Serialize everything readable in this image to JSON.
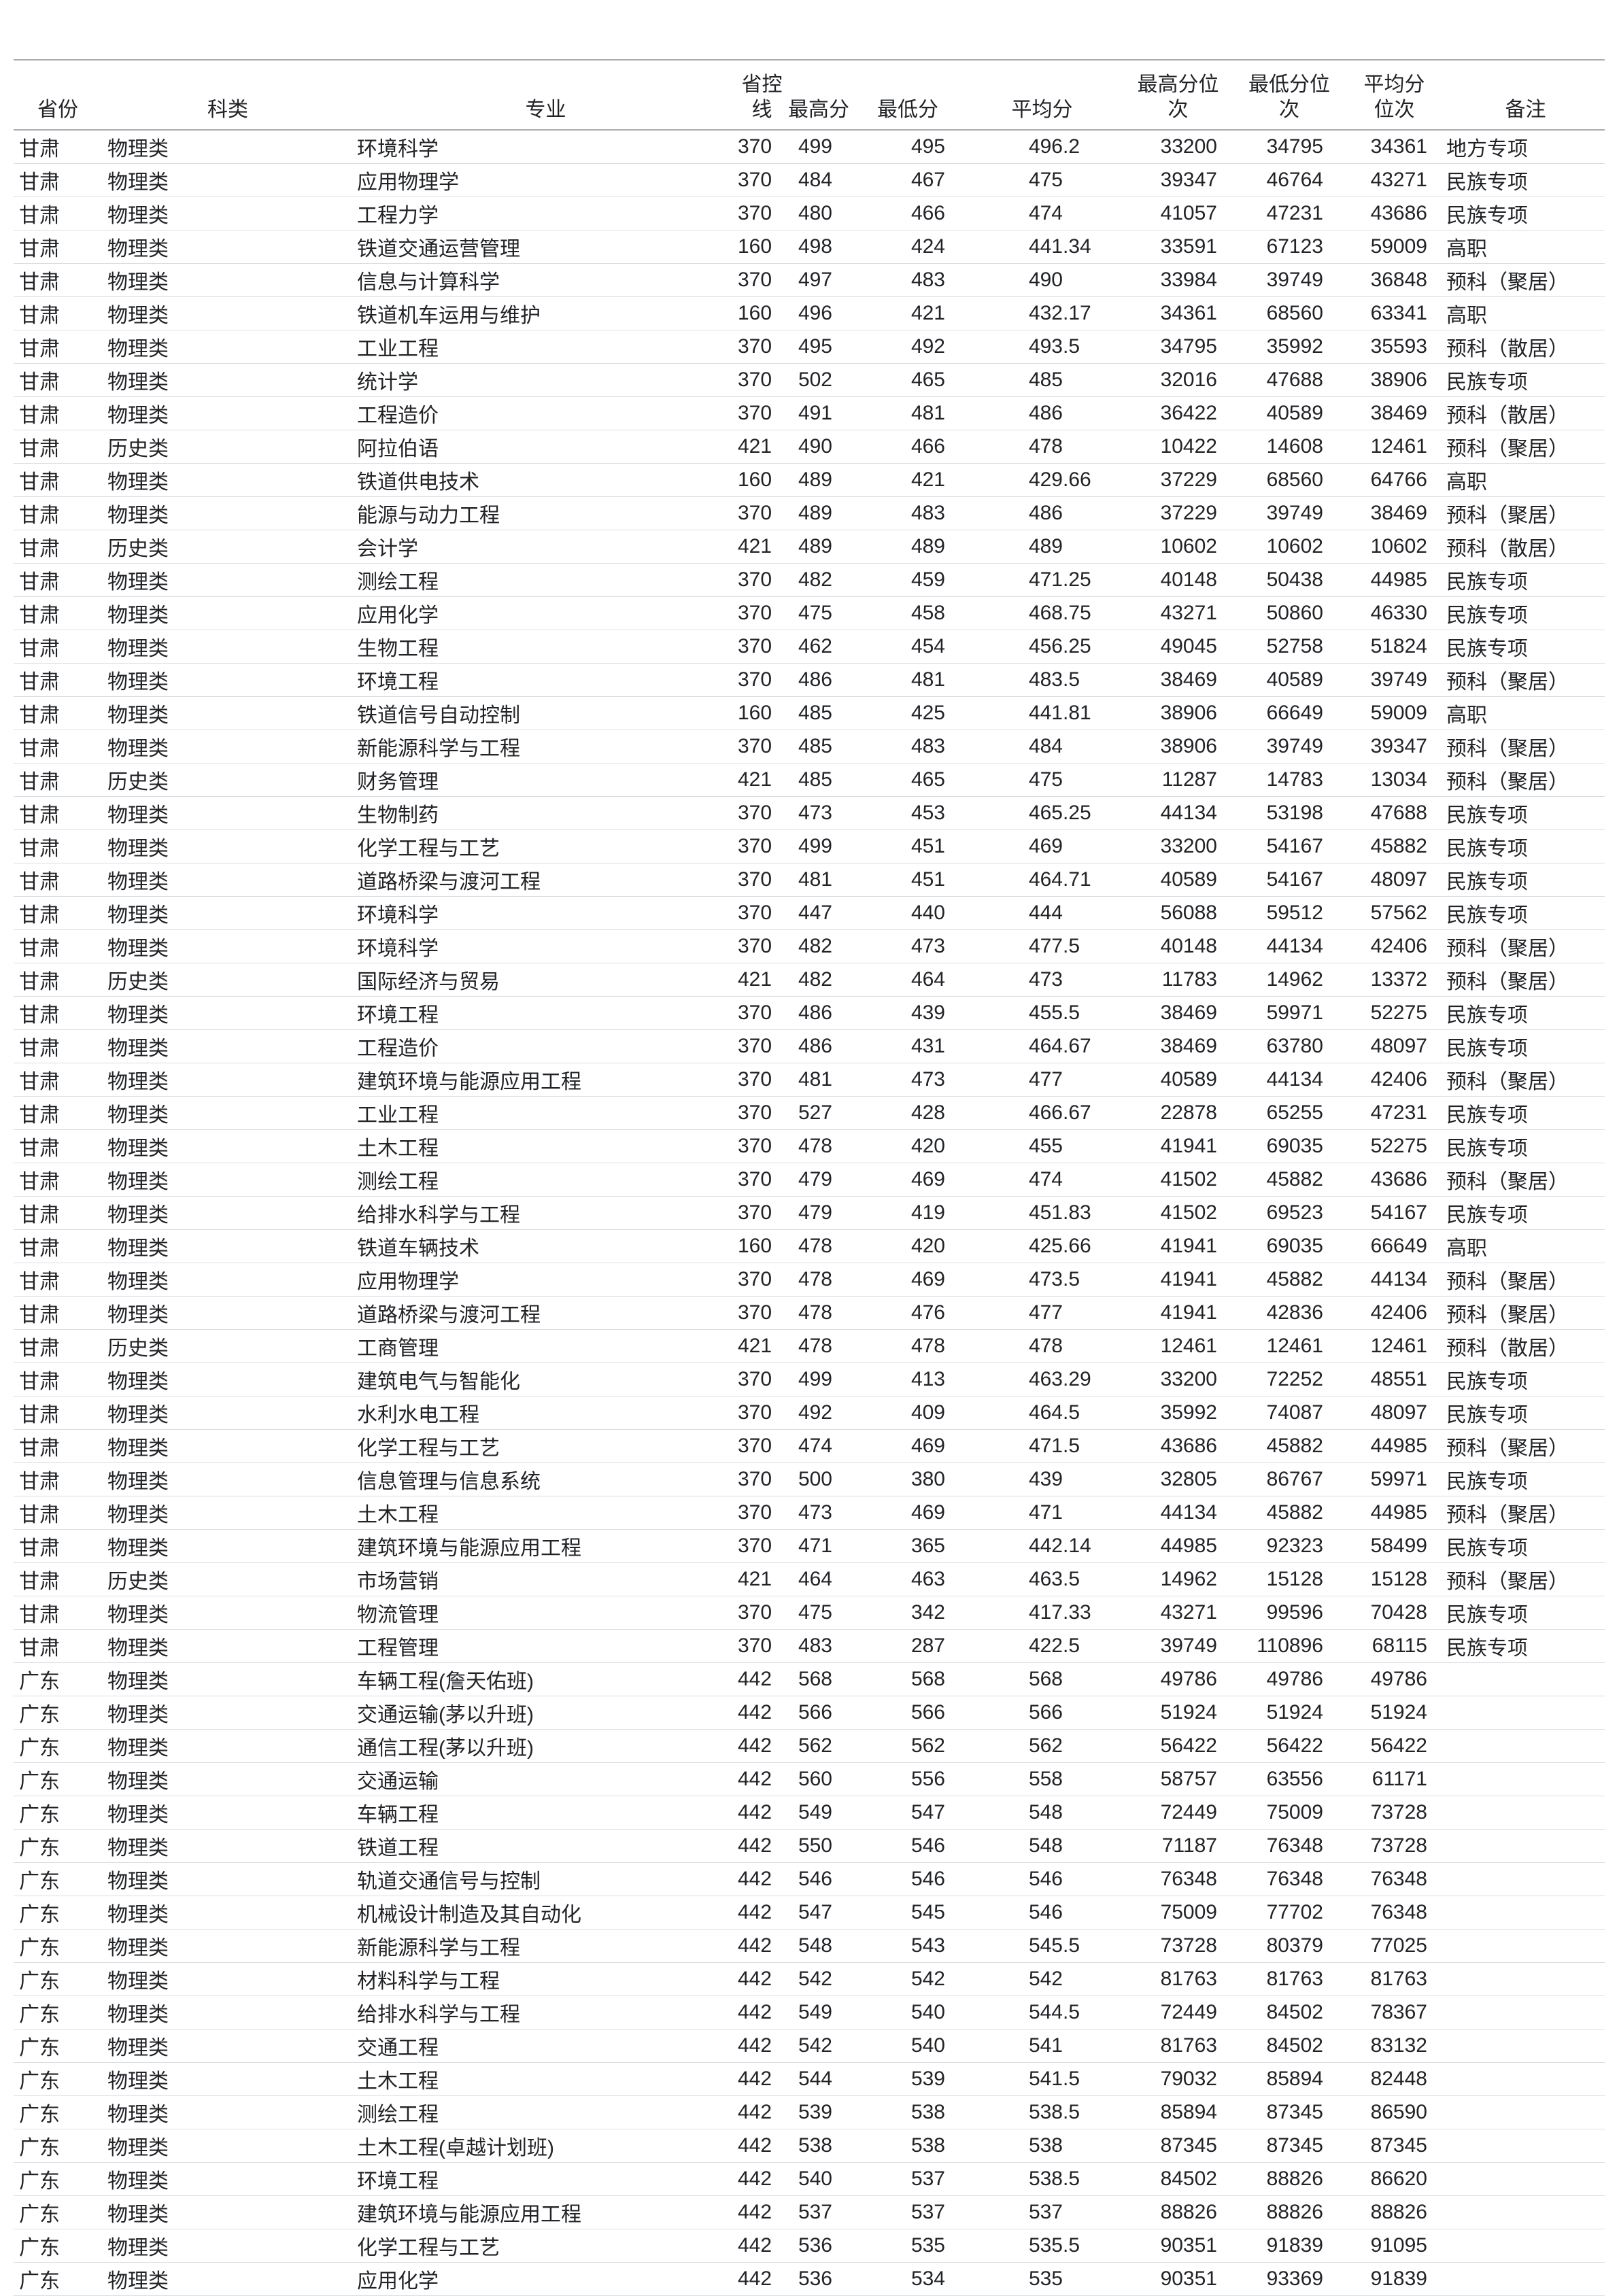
{
  "theme": {
    "background": "#ffffff",
    "text_color": "#212327",
    "header_rule_color": "#a9aeb4",
    "row_rule_color": "#dadde0"
  },
  "table": {
    "columns": [
      {
        "key": "province",
        "label": "省份"
      },
      {
        "key": "category",
        "label": "科类"
      },
      {
        "key": "major",
        "label": "专业"
      },
      {
        "key": "control_line",
        "label": "省控\n线"
      },
      {
        "key": "max_score",
        "label": "最高分"
      },
      {
        "key": "min_score",
        "label": "最低分"
      },
      {
        "key": "avg_score",
        "label": "平均分"
      },
      {
        "key": "max_rank",
        "label": "最高分位\n次"
      },
      {
        "key": "min_rank",
        "label": "最低分位\n次"
      },
      {
        "key": "avg_rank",
        "label": "平均分\n位次"
      },
      {
        "key": "remark",
        "label": "备注"
      }
    ],
    "rows": [
      [
        "甘肃",
        "物理类",
        "环境科学",
        "370",
        "499",
        "495",
        "496.2",
        "33200",
        "34795",
        "34361",
        "地方专项"
      ],
      [
        "甘肃",
        "物理类",
        "应用物理学",
        "370",
        "484",
        "467",
        "475",
        "39347",
        "46764",
        "43271",
        "民族专项"
      ],
      [
        "甘肃",
        "物理类",
        "工程力学",
        "370",
        "480",
        "466",
        "474",
        "41057",
        "47231",
        "43686",
        "民族专项"
      ],
      [
        "甘肃",
        "物理类",
        "铁道交通运营管理",
        "160",
        "498",
        "424",
        "441.34",
        "33591",
        "67123",
        "59009",
        "高职"
      ],
      [
        "甘肃",
        "物理类",
        "信息与计算科学",
        "370",
        "497",
        "483",
        "490",
        "33984",
        "39749",
        "36848",
        "预科（聚居）"
      ],
      [
        "甘肃",
        "物理类",
        "铁道机车运用与维护",
        "160",
        "496",
        "421",
        "432.17",
        "34361",
        "68560",
        "63341",
        "高职"
      ],
      [
        "甘肃",
        "物理类",
        "工业工程",
        "370",
        "495",
        "492",
        "493.5",
        "34795",
        "35992",
        "35593",
        "预科（散居）"
      ],
      [
        "甘肃",
        "物理类",
        "统计学",
        "370",
        "502",
        "465",
        "485",
        "32016",
        "47688",
        "38906",
        "民族专项"
      ],
      [
        "甘肃",
        "物理类",
        "工程造价",
        "370",
        "491",
        "481",
        "486",
        "36422",
        "40589",
        "38469",
        "预科（散居）"
      ],
      [
        "甘肃",
        "历史类",
        "阿拉伯语",
        "421",
        "490",
        "466",
        "478",
        "10422",
        "14608",
        "12461",
        "预科（聚居）"
      ],
      [
        "甘肃",
        "物理类",
        "铁道供电技术",
        "160",
        "489",
        "421",
        "429.66",
        "37229",
        "68560",
        "64766",
        "高职"
      ],
      [
        "甘肃",
        "物理类",
        "能源与动力工程",
        "370",
        "489",
        "483",
        "486",
        "37229",
        "39749",
        "38469",
        "预科（聚居）"
      ],
      [
        "甘肃",
        "历史类",
        "会计学",
        "421",
        "489",
        "489",
        "489",
        "10602",
        "10602",
        "10602",
        "预科（散居）"
      ],
      [
        "甘肃",
        "物理类",
        "测绘工程",
        "370",
        "482",
        "459",
        "471.25",
        "40148",
        "50438",
        "44985",
        "民族专项"
      ],
      [
        "甘肃",
        "物理类",
        "应用化学",
        "370",
        "475",
        "458",
        "468.75",
        "43271",
        "50860",
        "46330",
        "民族专项"
      ],
      [
        "甘肃",
        "物理类",
        "生物工程",
        "370",
        "462",
        "454",
        "456.25",
        "49045",
        "52758",
        "51824",
        "民族专项"
      ],
      [
        "甘肃",
        "物理类",
        "环境工程",
        "370",
        "486",
        "481",
        "483.5",
        "38469",
        "40589",
        "39749",
        "预科（聚居）"
      ],
      [
        "甘肃",
        "物理类",
        "铁道信号自动控制",
        "160",
        "485",
        "425",
        "441.81",
        "38906",
        "66649",
        "59009",
        "高职"
      ],
      [
        "甘肃",
        "物理类",
        "新能源科学与工程",
        "370",
        "485",
        "483",
        "484",
        "38906",
        "39749",
        "39347",
        "预科（聚居）"
      ],
      [
        "甘肃",
        "历史类",
        "财务管理",
        "421",
        "485",
        "465",
        "475",
        "11287",
        "14783",
        "13034",
        "预科（聚居）"
      ],
      [
        "甘肃",
        "物理类",
        "生物制药",
        "370",
        "473",
        "453",
        "465.25",
        "44134",
        "53198",
        "47688",
        "民族专项"
      ],
      [
        "甘肃",
        "物理类",
        "化学工程与工艺",
        "370",
        "499",
        "451",
        "469",
        "33200",
        "54167",
        "45882",
        "民族专项"
      ],
      [
        "甘肃",
        "物理类",
        "道路桥梁与渡河工程",
        "370",
        "481",
        "451",
        "464.71",
        "40589",
        "54167",
        "48097",
        "民族专项"
      ],
      [
        "甘肃",
        "物理类",
        "环境科学",
        "370",
        "447",
        "440",
        "444",
        "56088",
        "59512",
        "57562",
        "民族专项"
      ],
      [
        "甘肃",
        "物理类",
        "环境科学",
        "370",
        "482",
        "473",
        "477.5",
        "40148",
        "44134",
        "42406",
        "预科（聚居）"
      ],
      [
        "甘肃",
        "历史类",
        "国际经济与贸易",
        "421",
        "482",
        "464",
        "473",
        "11783",
        "14962",
        "13372",
        "预科（聚居）"
      ],
      [
        "甘肃",
        "物理类",
        "环境工程",
        "370",
        "486",
        "439",
        "455.5",
        "38469",
        "59971",
        "52275",
        "民族专项"
      ],
      [
        "甘肃",
        "物理类",
        "工程造价",
        "370",
        "486",
        "431",
        "464.67",
        "38469",
        "63780",
        "48097",
        "民族专项"
      ],
      [
        "甘肃",
        "物理类",
        "建筑环境与能源应用工程",
        "370",
        "481",
        "473",
        "477",
        "40589",
        "44134",
        "42406",
        "预科（聚居）"
      ],
      [
        "甘肃",
        "物理类",
        "工业工程",
        "370",
        "527",
        "428",
        "466.67",
        "22878",
        "65255",
        "47231",
        "民族专项"
      ],
      [
        "甘肃",
        "物理类",
        "土木工程",
        "370",
        "478",
        "420",
        "455",
        "41941",
        "69035",
        "52275",
        "民族专项"
      ],
      [
        "甘肃",
        "物理类",
        "测绘工程",
        "370",
        "479",
        "469",
        "474",
        "41502",
        "45882",
        "43686",
        "预科（聚居）"
      ],
      [
        "甘肃",
        "物理类",
        "给排水科学与工程",
        "370",
        "479",
        "419",
        "451.83",
        "41502",
        "69523",
        "54167",
        "民族专项"
      ],
      [
        "甘肃",
        "物理类",
        "铁道车辆技术",
        "160",
        "478",
        "420",
        "425.66",
        "41941",
        "69035",
        "66649",
        "高职"
      ],
      [
        "甘肃",
        "物理类",
        "应用物理学",
        "370",
        "478",
        "469",
        "473.5",
        "41941",
        "45882",
        "44134",
        "预科（聚居）"
      ],
      [
        "甘肃",
        "物理类",
        "道路桥梁与渡河工程",
        "370",
        "478",
        "476",
        "477",
        "41941",
        "42836",
        "42406",
        "预科（聚居）"
      ],
      [
        "甘肃",
        "历史类",
        "工商管理",
        "421",
        "478",
        "478",
        "478",
        "12461",
        "12461",
        "12461",
        "预科（散居）"
      ],
      [
        "甘肃",
        "物理类",
        "建筑电气与智能化",
        "370",
        "499",
        "413",
        "463.29",
        "33200",
        "72252",
        "48551",
        "民族专项"
      ],
      [
        "甘肃",
        "物理类",
        "水利水电工程",
        "370",
        "492",
        "409",
        "464.5",
        "35992",
        "74087",
        "48097",
        "民族专项"
      ],
      [
        "甘肃",
        "物理类",
        "化学工程与工艺",
        "370",
        "474",
        "469",
        "471.5",
        "43686",
        "45882",
        "44985",
        "预科（聚居）"
      ],
      [
        "甘肃",
        "物理类",
        "信息管理与信息系统",
        "370",
        "500",
        "380",
        "439",
        "32805",
        "86767",
        "59971",
        "民族专项"
      ],
      [
        "甘肃",
        "物理类",
        "土木工程",
        "370",
        "473",
        "469",
        "471",
        "44134",
        "45882",
        "44985",
        "预科（聚居）"
      ],
      [
        "甘肃",
        "物理类",
        "建筑环境与能源应用工程",
        "370",
        "471",
        "365",
        "442.14",
        "44985",
        "92323",
        "58499",
        "民族专项"
      ],
      [
        "甘肃",
        "历史类",
        "市场营销",
        "421",
        "464",
        "463",
        "463.5",
        "14962",
        "15128",
        "15128",
        "预科（聚居）"
      ],
      [
        "甘肃",
        "物理类",
        "物流管理",
        "370",
        "475",
        "342",
        "417.33",
        "43271",
        "99596",
        "70428",
        "民族专项"
      ],
      [
        "甘肃",
        "物理类",
        "工程管理",
        "370",
        "483",
        "287",
        "422.5",
        "39749",
        "110896",
        "68115",
        "民族专项"
      ],
      [
        "广东",
        "物理类",
        "车辆工程(詹天佑班)",
        "442",
        "568",
        "568",
        "568",
        "49786",
        "49786",
        "49786",
        ""
      ],
      [
        "广东",
        "物理类",
        "交通运输(茅以升班)",
        "442",
        "566",
        "566",
        "566",
        "51924",
        "51924",
        "51924",
        ""
      ],
      [
        "广东",
        "物理类",
        "通信工程(茅以升班)",
        "442",
        "562",
        "562",
        "562",
        "56422",
        "56422",
        "56422",
        ""
      ],
      [
        "广东",
        "物理类",
        "交通运输",
        "442",
        "560",
        "556",
        "558",
        "58757",
        "63556",
        "61171",
        ""
      ],
      [
        "广东",
        "物理类",
        "车辆工程",
        "442",
        "549",
        "547",
        "548",
        "72449",
        "75009",
        "73728",
        ""
      ],
      [
        "广东",
        "物理类",
        "铁道工程",
        "442",
        "550",
        "546",
        "548",
        "71187",
        "76348",
        "73728",
        ""
      ],
      [
        "广东",
        "物理类",
        "轨道交通信号与控制",
        "442",
        "546",
        "546",
        "546",
        "76348",
        "76348",
        "76348",
        ""
      ],
      [
        "广东",
        "物理类",
        "机械设计制造及其自动化",
        "442",
        "547",
        "545",
        "546",
        "75009",
        "77702",
        "76348",
        ""
      ],
      [
        "广东",
        "物理类",
        "新能源科学与工程",
        "442",
        "548",
        "543",
        "545.5",
        "73728",
        "80379",
        "77025",
        ""
      ],
      [
        "广东",
        "物理类",
        "材料科学与工程",
        "442",
        "542",
        "542",
        "542",
        "81763",
        "81763",
        "81763",
        ""
      ],
      [
        "广东",
        "物理类",
        "给排水科学与工程",
        "442",
        "549",
        "540",
        "544.5",
        "72449",
        "84502",
        "78367",
        ""
      ],
      [
        "广东",
        "物理类",
        "交通工程",
        "442",
        "542",
        "540",
        "541",
        "81763",
        "84502",
        "83132",
        ""
      ],
      [
        "广东",
        "物理类",
        "土木工程",
        "442",
        "544",
        "539",
        "541.5",
        "79032",
        "85894",
        "82448",
        ""
      ],
      [
        "广东",
        "物理类",
        "测绘工程",
        "442",
        "539",
        "538",
        "538.5",
        "85894",
        "87345",
        "86590",
        ""
      ],
      [
        "广东",
        "物理类",
        "土木工程(卓越计划班)",
        "442",
        "538",
        "538",
        "538",
        "87345",
        "87345",
        "87345",
        ""
      ],
      [
        "广东",
        "物理类",
        "环境工程",
        "442",
        "540",
        "537",
        "538.5",
        "84502",
        "88826",
        "86620",
        ""
      ],
      [
        "广东",
        "物理类",
        "建筑环境与能源应用工程",
        "442",
        "537",
        "537",
        "537",
        "88826",
        "88826",
        "88826",
        ""
      ],
      [
        "广东",
        "物理类",
        "化学工程与工艺",
        "442",
        "536",
        "535",
        "535.5",
        "90351",
        "91839",
        "91095",
        ""
      ],
      [
        "广东",
        "物理类",
        "应用化学",
        "442",
        "536",
        "534",
        "535",
        "90351",
        "93369",
        "91839",
        ""
      ]
    ]
  }
}
